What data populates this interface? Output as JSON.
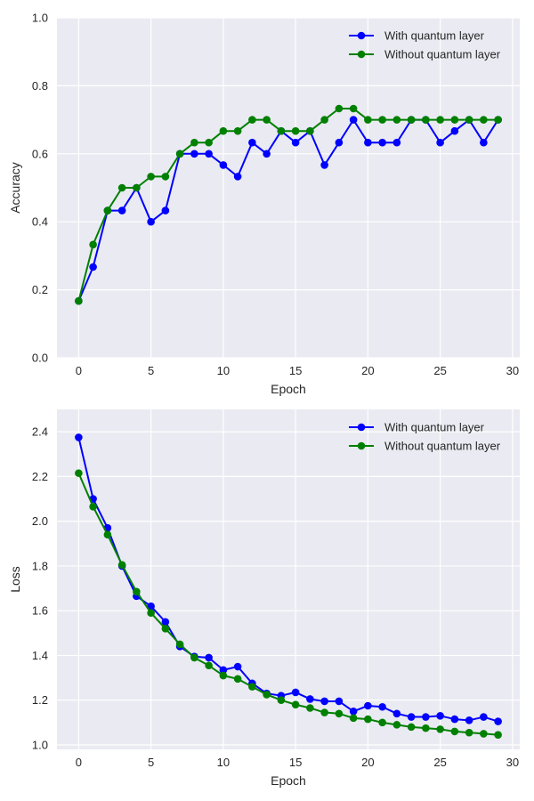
{
  "colors": {
    "background": "#eaeaf2",
    "grid": "#ffffff",
    "series_with": "#0000ff",
    "series_without": "#008000"
  },
  "chart_data": [
    {
      "type": "line",
      "xlabel": "Epoch",
      "ylabel": "Accuracy",
      "xlim": [
        -1.5,
        30.5
      ],
      "ylim": [
        0.0,
        1.0
      ],
      "xticks": [
        0,
        5,
        10,
        15,
        20,
        25,
        30
      ],
      "yticks": [
        0.0,
        0.2,
        0.4,
        0.6,
        0.8,
        1.0
      ],
      "grid": true,
      "legend_position": "top-right",
      "markers": "circle",
      "x": [
        0,
        1,
        2,
        3,
        4,
        5,
        6,
        7,
        8,
        9,
        10,
        11,
        12,
        13,
        14,
        15,
        16,
        17,
        18,
        19,
        20,
        21,
        22,
        23,
        24,
        25,
        26,
        27,
        28,
        29
      ],
      "series": [
        {
          "name": "With quantum layer",
          "color": "#0000ff",
          "values": [
            0.167,
            0.267,
            0.433,
            0.433,
            0.5,
            0.4,
            0.433,
            0.6,
            0.6,
            0.6,
            0.567,
            0.533,
            0.633,
            0.6,
            0.667,
            0.633,
            0.667,
            0.567,
            0.633,
            0.7,
            0.633,
            0.633,
            0.633,
            0.7,
            0.7,
            0.633,
            0.667,
            0.7,
            0.633,
            0.7
          ]
        },
        {
          "name": "Without quantum layer",
          "color": "#008000",
          "values": [
            0.167,
            0.333,
            0.433,
            0.5,
            0.5,
            0.533,
            0.533,
            0.6,
            0.633,
            0.633,
            0.667,
            0.667,
            0.7,
            0.7,
            0.667,
            0.667,
            0.667,
            0.7,
            0.733,
            0.733,
            0.7,
            0.7,
            0.7,
            0.7,
            0.7,
            0.7,
            0.7,
            0.7,
            0.7,
            0.7
          ]
        }
      ]
    },
    {
      "type": "line",
      "xlabel": "Epoch",
      "ylabel": "Loss",
      "xlim": [
        -1.5,
        30.5
      ],
      "ylim": [
        0.98,
        2.5
      ],
      "xticks": [
        0,
        5,
        10,
        15,
        20,
        25,
        30
      ],
      "yticks": [
        1.0,
        1.2,
        1.4,
        1.6,
        1.8,
        2.0,
        2.2,
        2.4
      ],
      "grid": true,
      "legend_position": "top-right",
      "markers": "circle",
      "x": [
        0,
        1,
        2,
        3,
        4,
        5,
        6,
        7,
        8,
        9,
        10,
        11,
        12,
        13,
        14,
        15,
        16,
        17,
        18,
        19,
        20,
        21,
        22,
        23,
        24,
        25,
        26,
        27,
        28,
        29
      ],
      "series": [
        {
          "name": "With quantum layer",
          "color": "#0000ff",
          "values": [
            2.375,
            2.1,
            1.97,
            1.8,
            1.665,
            1.62,
            1.55,
            1.44,
            1.395,
            1.39,
            1.335,
            1.35,
            1.275,
            1.23,
            1.22,
            1.235,
            1.205,
            1.195,
            1.195,
            1.15,
            1.175,
            1.17,
            1.14,
            1.125,
            1.125,
            1.13,
            1.115,
            1.11,
            1.125,
            1.105
          ]
        },
        {
          "name": "Without quantum layer",
          "color": "#008000",
          "values": [
            2.215,
            2.065,
            1.94,
            1.805,
            1.685,
            1.59,
            1.52,
            1.45,
            1.39,
            1.355,
            1.31,
            1.295,
            1.26,
            1.225,
            1.2,
            1.18,
            1.165,
            1.145,
            1.14,
            1.12,
            1.115,
            1.1,
            1.09,
            1.08,
            1.075,
            1.07,
            1.06,
            1.055,
            1.05,
            1.045
          ]
        }
      ]
    }
  ]
}
